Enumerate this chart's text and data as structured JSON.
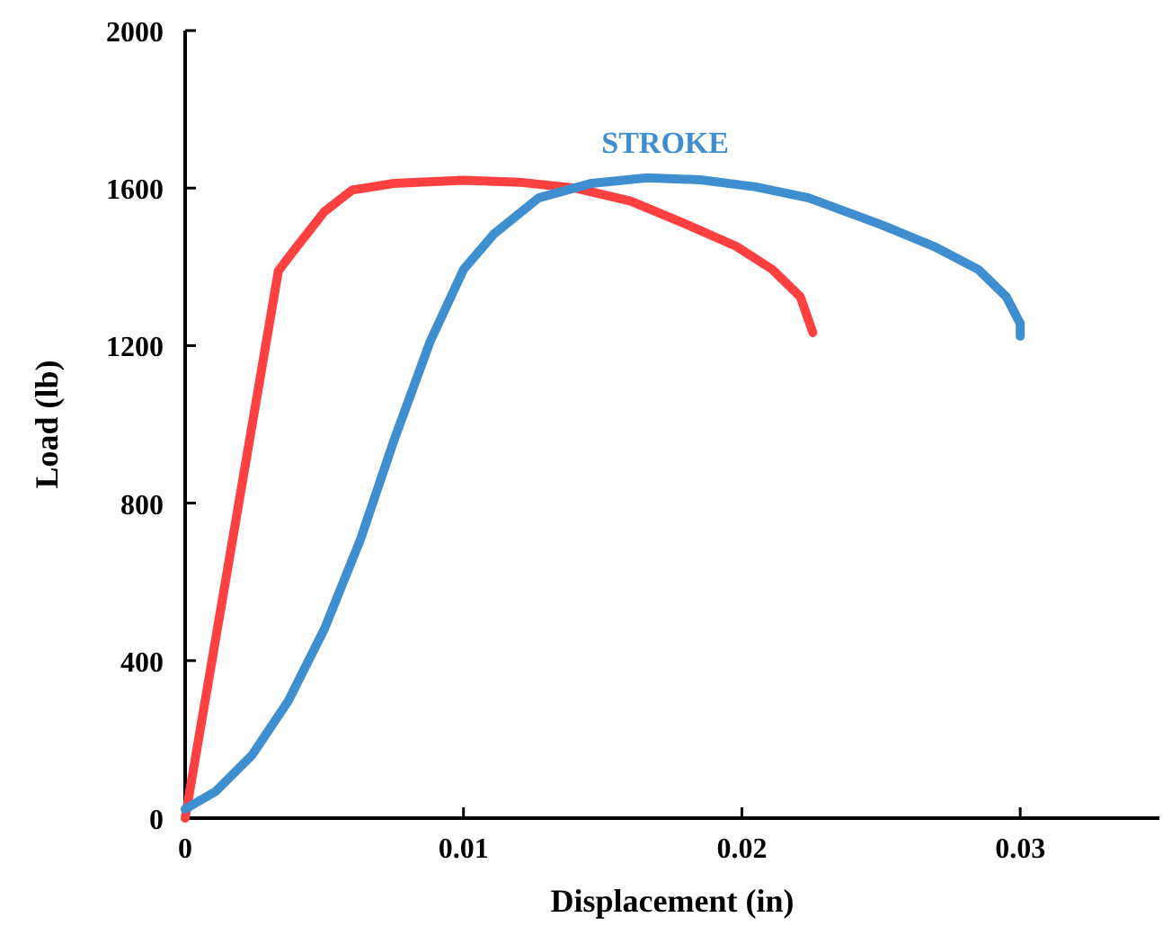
{
  "chart_data": {
    "type": "line",
    "xlabel": "Displacement (in)",
    "ylabel": "Load (lb)",
    "xlim": [
      0,
      0.035
    ],
    "xticks": [
      0,
      0.01,
      0.02,
      0.03
    ],
    "ylim": [
      0,
      2000
    ],
    "yticks": [
      0,
      400,
      800,
      1200,
      1600,
      2000
    ],
    "marker": "none",
    "line_style": "solid",
    "series": [
      {
        "color": "#ff4040",
        "x": [
          0,
          0.00335,
          0.004,
          0.005,
          0.006,
          0.0075,
          0.01,
          0.012,
          0.014,
          0.016,
          0.0179,
          0.0198,
          0.0211,
          0.0221,
          0.02255
        ],
        "values": [
          0,
          1390,
          1450,
          1540,
          1595,
          1612,
          1620,
          1615,
          1600,
          1567,
          1511,
          1452,
          1393,
          1324,
          1233
        ]
      },
      {
        "name": "STROKE",
        "color": "#3f8fd0",
        "x": [
          0,
          0.0011,
          0.0024,
          0.0037,
          0.005,
          0.0063,
          0.0075,
          0.0088,
          0.01,
          0.0111,
          0.0127,
          0.0146,
          0.0166,
          0.0185,
          0.0205,
          0.0224,
          0.025,
          0.0269,
          0.0285,
          0.0295,
          0.03,
          0.03
        ],
        "values": [
          23,
          68,
          160,
          297,
          480,
          708,
          959,
          1210,
          1393,
          1484,
          1575,
          1612,
          1626,
          1621,
          1603,
          1575,
          1507,
          1452,
          1393,
          1324,
          1256,
          1224
        ]
      }
    ]
  }
}
